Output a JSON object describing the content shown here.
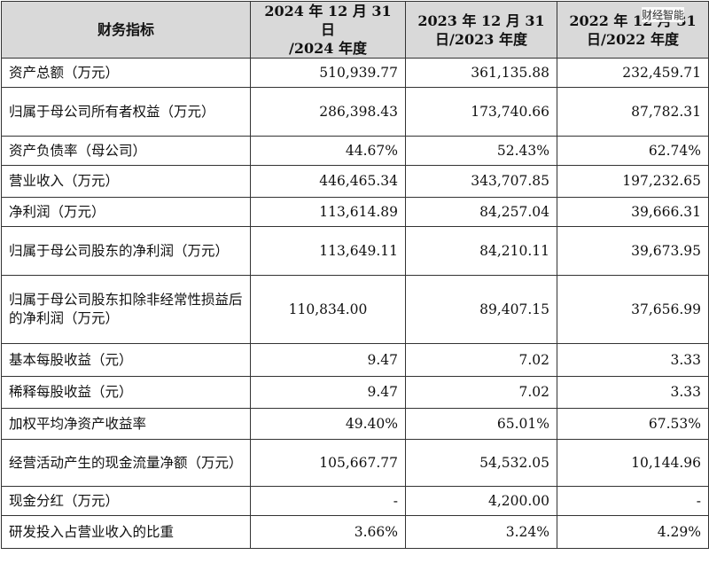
{
  "header": {
    "col0": "财务指标",
    "col1_line1": "2024 年 12 月 31 日",
    "col1_line2": "/2024 年度",
    "col2_line1": "2023 年 12 月 31",
    "col2_line2": "日/2023 年度",
    "col3_line1": "2022 年 12 月 31",
    "col3_line2": "日/2022 年度"
  },
  "watermark": "财经智能",
  "rows": [
    {
      "label": "资产总额（万元）",
      "v2024": "510,939.77",
      "v2023": "361,135.88",
      "v2022": "232,459.71"
    },
    {
      "label": "归属于母公司所有者权益（万元）",
      "v2024": "286,398.43",
      "v2023": "173,740.66",
      "v2022": "87,782.31"
    },
    {
      "label": "资产负债率（母公司）",
      "v2024": "44.67%",
      "v2023": "52.43%",
      "v2022": "62.74%"
    },
    {
      "label": "营业收入（万元）",
      "v2024": "446,465.34",
      "v2023": "343,707.85",
      "v2022": "197,232.65"
    },
    {
      "label": "净利润（万元）",
      "v2024": "113,614.89",
      "v2023": "84,257.04",
      "v2022": "39,666.31"
    },
    {
      "label": "归属于母公司股东的净利润（万元）",
      "v2024": "113,649.11",
      "v2023": "84,210.11",
      "v2022": "39,673.95"
    },
    {
      "label": "归属于母公司股东扣除非经常性损益后的净利润（万元）",
      "v2024": "110,834.00",
      "v2023": "89,407.15",
      "v2022": "37,656.99"
    },
    {
      "label": "基本每股收益（元）",
      "v2024": "9.47",
      "v2023": "7.02",
      "v2022": "3.33"
    },
    {
      "label": "稀释每股收益（元）",
      "v2024": "9.47",
      "v2023": "7.02",
      "v2022": "3.33"
    },
    {
      "label": "加权平均净资产收益率",
      "v2024": "49.40%",
      "v2023": "65.01%",
      "v2022": "67.53%"
    },
    {
      "label": "经营活动产生的现金流量净额（万元）",
      "v2024": "105,667.77",
      "v2023": "54,532.05",
      "v2022": "10,144.96"
    },
    {
      "label": "现金分红（万元）",
      "v2024": "-",
      "v2023": "4,200.00",
      "v2022": "-"
    },
    {
      "label": "研发投入占营业收入的比重",
      "v2024": "3.66%",
      "v2023": "3.24%",
      "v2022": "4.29%"
    }
  ]
}
